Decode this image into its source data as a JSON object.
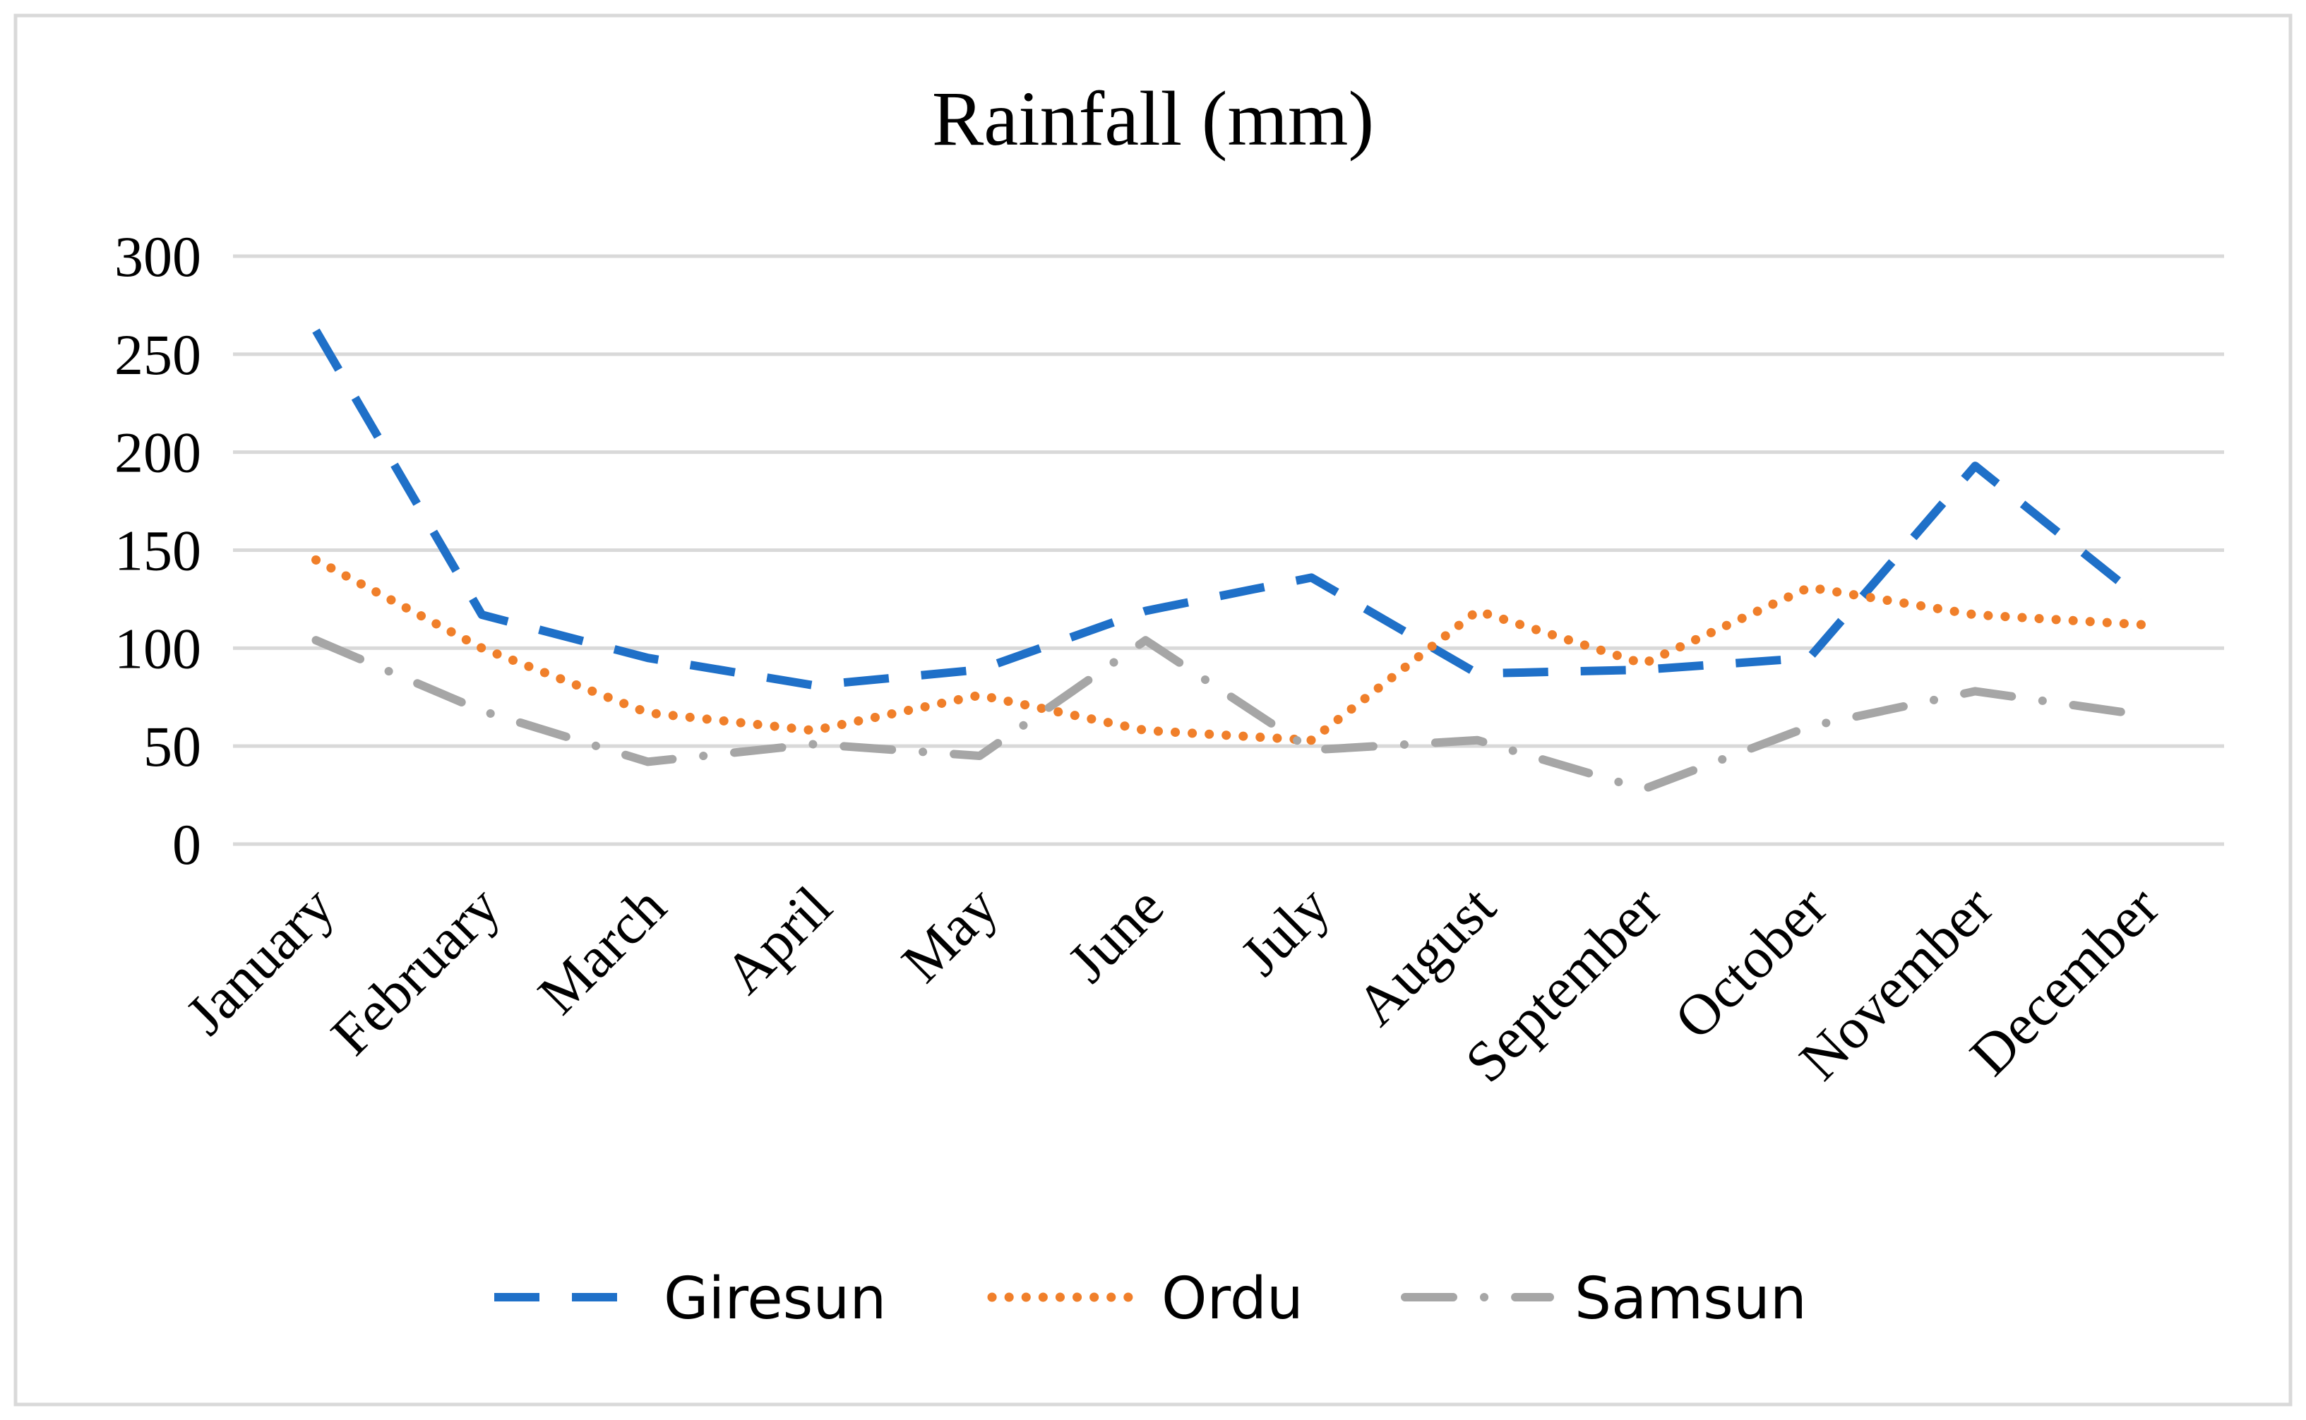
{
  "chart_data": {
    "type": "line",
    "title": "Rainfall (mm)",
    "xlabel": "",
    "ylabel": "",
    "ylim": [
      0,
      300
    ],
    "yticks": [
      "0",
      "50",
      "100",
      "150",
      "200",
      "250",
      "300"
    ],
    "grid": true,
    "legend_position": "bottom",
    "categories": [
      "January",
      "February",
      "March",
      "April",
      "May",
      "June",
      "July",
      "August",
      "September",
      "October",
      "November",
      "December"
    ],
    "series": [
      {
        "name": "Giresun",
        "color": "#1F70C8",
        "style": "dash",
        "values": [
          262,
          117,
          95,
          81,
          89,
          119,
          136,
          87,
          89,
          95,
          193,
          125
        ]
      },
      {
        "name": "Ordu",
        "color": "#F07F2A",
        "style": "dot",
        "values": [
          145,
          100,
          67,
          58,
          76,
          58,
          53,
          119,
          92,
          131,
          117,
          112
        ]
      },
      {
        "name": "Samsun",
        "color": "#A6A6A6",
        "style": "dashdot",
        "values": [
          104,
          68,
          42,
          51,
          45,
          104,
          48,
          53,
          28,
          60,
          78,
          66
        ]
      }
    ]
  }
}
